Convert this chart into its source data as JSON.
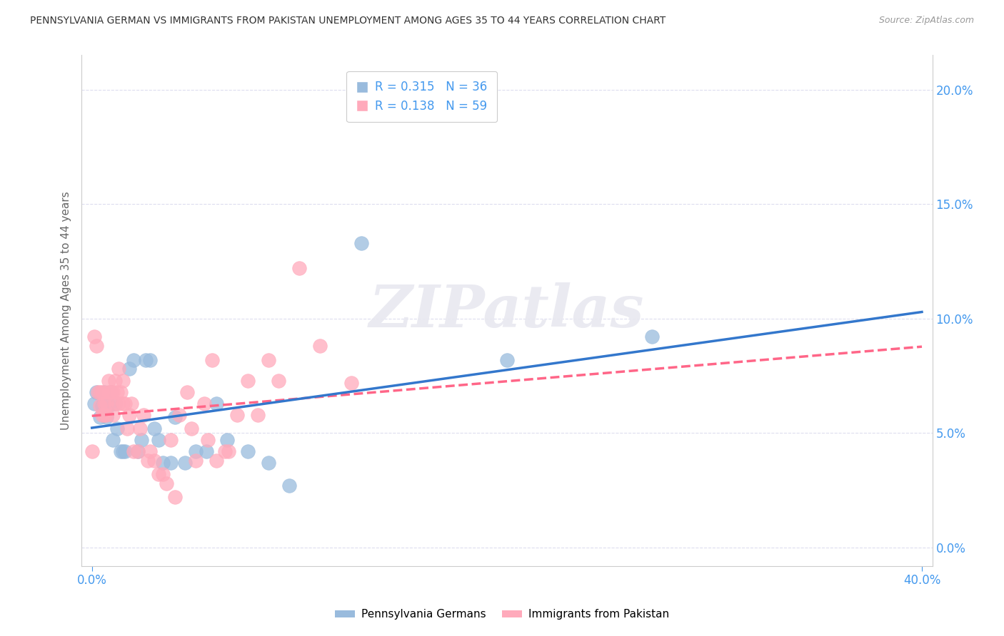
{
  "title": "PENNSYLVANIA GERMAN VS IMMIGRANTS FROM PAKISTAN UNEMPLOYMENT AMONG AGES 35 TO 44 YEARS CORRELATION CHART",
  "source": "Source: ZipAtlas.com",
  "xlabel_ticks_left": "0.0%",
  "xlabel_ticks_right": "40.0%",
  "xlim_left": 0.0,
  "xlim_right": 0.4,
  "ylabel": "Unemployment Among Ages 35 to 44 years",
  "ylabel_ticks": [
    "0.0%",
    "5.0%",
    "10.0%",
    "15.0%",
    "20.0%"
  ],
  "ylabel_vals": [
    0.0,
    0.05,
    0.1,
    0.15,
    0.2
  ],
  "ylim_min": -0.008,
  "ylim_max": 0.215,
  "watermark": "ZIPatlas",
  "legend_label1": "R = 0.315   N = 36",
  "legend_label2": "R = 0.138   N = 59",
  "series1_label": "Pennsylvania Germans",
  "series2_label": "Immigrants from Pakistan",
  "color1": "#99BBDD",
  "color2": "#FFAABB",
  "trendline1_color": "#3377CC",
  "trendline2_color": "#FF6688",
  "blue_axis_color": "#4499EE",
  "grid_color": "#DDDDEE",
  "spine_color": "#CCCCCC",
  "series1_x": [
    0.001,
    0.002,
    0.004,
    0.005,
    0.006,
    0.007,
    0.008,
    0.009,
    0.01,
    0.011,
    0.012,
    0.014,
    0.015,
    0.016,
    0.018,
    0.02,
    0.022,
    0.024,
    0.026,
    0.028,
    0.03,
    0.032,
    0.034,
    0.038,
    0.04,
    0.045,
    0.05,
    0.055,
    0.06,
    0.065,
    0.075,
    0.085,
    0.095,
    0.13,
    0.2,
    0.27
  ],
  "series1_y": [
    0.063,
    0.068,
    0.057,
    0.062,
    0.068,
    0.057,
    0.062,
    0.068,
    0.047,
    0.063,
    0.052,
    0.042,
    0.042,
    0.042,
    0.078,
    0.082,
    0.042,
    0.047,
    0.082,
    0.082,
    0.052,
    0.047,
    0.037,
    0.037,
    0.057,
    0.037,
    0.042,
    0.042,
    0.063,
    0.047,
    0.042,
    0.037,
    0.027,
    0.133,
    0.082,
    0.092
  ],
  "series2_x": [
    0.0,
    0.001,
    0.002,
    0.003,
    0.004,
    0.004,
    0.005,
    0.005,
    0.006,
    0.006,
    0.007,
    0.007,
    0.008,
    0.008,
    0.009,
    0.01,
    0.01,
    0.011,
    0.011,
    0.012,
    0.013,
    0.013,
    0.014,
    0.015,
    0.015,
    0.016,
    0.017,
    0.018,
    0.019,
    0.02,
    0.022,
    0.023,
    0.025,
    0.027,
    0.028,
    0.03,
    0.032,
    0.034,
    0.036,
    0.038,
    0.04,
    0.042,
    0.046,
    0.048,
    0.05,
    0.054,
    0.056,
    0.058,
    0.06,
    0.064,
    0.066,
    0.07,
    0.075,
    0.08,
    0.085,
    0.09,
    0.1,
    0.11,
    0.125
  ],
  "series2_y": [
    0.042,
    0.092,
    0.088,
    0.068,
    0.068,
    0.062,
    0.068,
    0.058,
    0.063,
    0.058,
    0.063,
    0.058,
    0.068,
    0.073,
    0.068,
    0.058,
    0.068,
    0.073,
    0.063,
    0.068,
    0.078,
    0.063,
    0.068,
    0.073,
    0.063,
    0.063,
    0.052,
    0.058,
    0.063,
    0.042,
    0.042,
    0.052,
    0.058,
    0.038,
    0.042,
    0.038,
    0.032,
    0.032,
    0.028,
    0.047,
    0.022,
    0.058,
    0.068,
    0.052,
    0.038,
    0.063,
    0.047,
    0.082,
    0.038,
    0.042,
    0.042,
    0.058,
    0.073,
    0.058,
    0.082,
    0.073,
    0.122,
    0.088,
    0.072
  ]
}
